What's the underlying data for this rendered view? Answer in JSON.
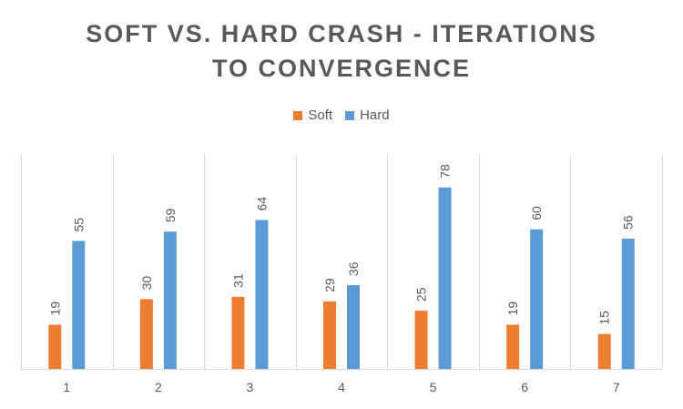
{
  "chart_data": {
    "type": "bar",
    "title_lines": [
      "SOFT VS. HARD CRASH - ITERATIONS",
      "TO CONVERGENCE"
    ],
    "categories": [
      "1",
      "2",
      "3",
      "4",
      "5",
      "6",
      "7"
    ],
    "series": [
      {
        "name": "Soft",
        "color": "#ED7D31",
        "values": [
          19,
          30,
          31,
          29,
          25,
          19,
          15
        ]
      },
      {
        "name": "Hard",
        "color": "#5B9BD5",
        "values": [
          55,
          59,
          64,
          36,
          78,
          60,
          56
        ]
      }
    ],
    "xlabel": "",
    "ylabel": "",
    "ylim": [
      0,
      92
    ],
    "grid": "vertical",
    "legend_position": "top",
    "data_labels": true
  }
}
